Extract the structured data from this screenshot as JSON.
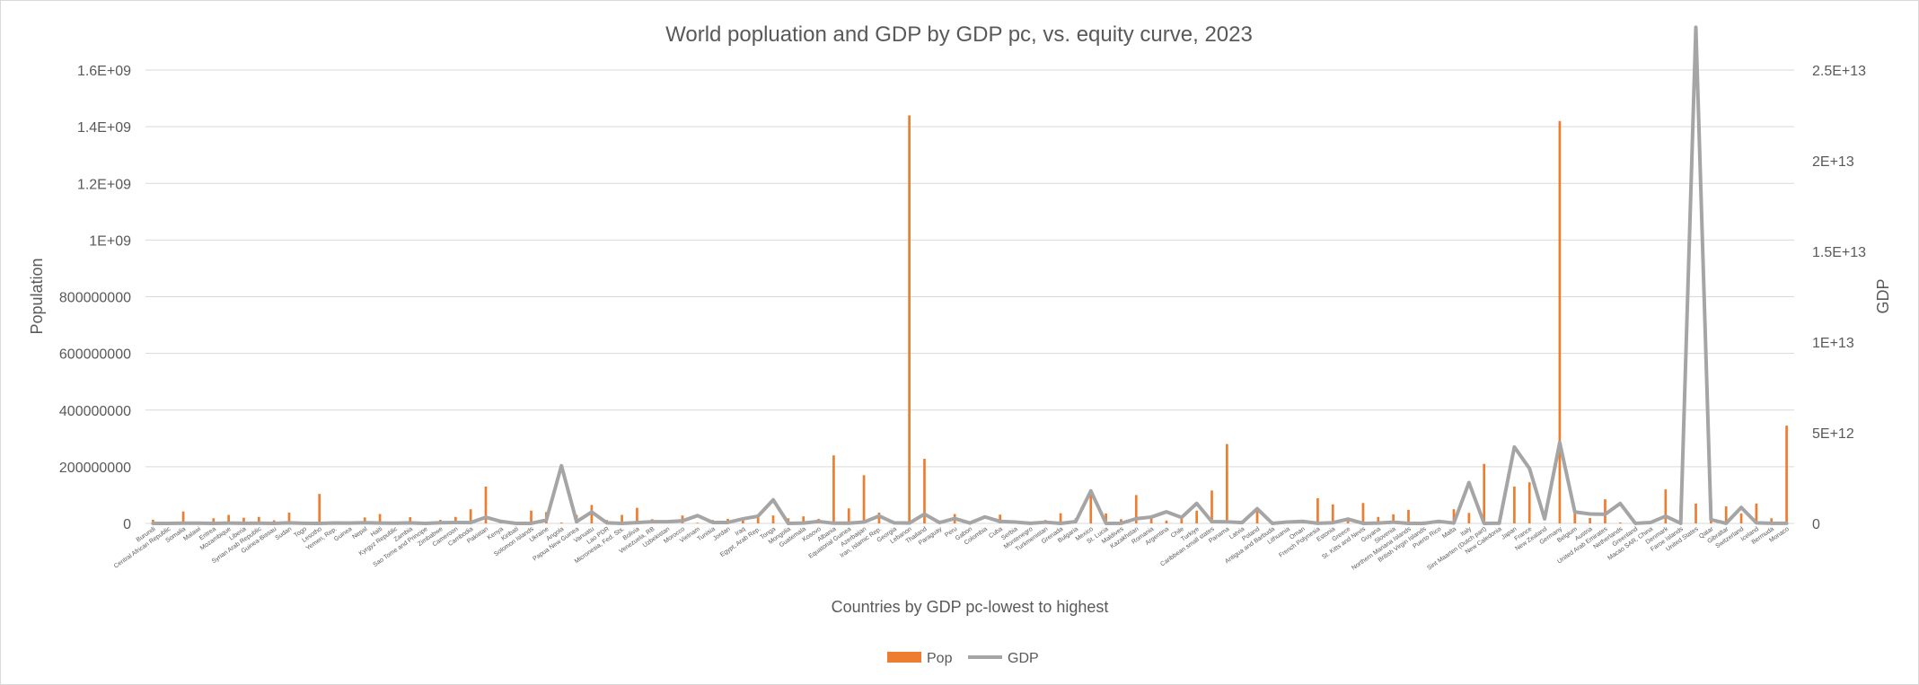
{
  "chart_data": {
    "type": "bar-line-combo",
    "title": "World popluation and GDP by GDP pc, vs. equity curve, 2023",
    "xlabel": "Countries by GDP pc-lowest to highest",
    "ylabel": "Population",
    "y2label": "GDP",
    "ylim": [
      0,
      1600000000
    ],
    "y2lim": [
      0,
      25000000000000
    ],
    "yticks": [
      "0",
      "200000000",
      "400000000",
      "600000000",
      "800000000",
      "1E+09",
      "1.2E+09",
      "1.4E+09",
      "1.6E+09"
    ],
    "y2ticks": [
      "0",
      "5E+12",
      "1E+13",
      "1.5E+13",
      "2E+13",
      "2.5E+13"
    ],
    "grid": true,
    "legend": "bottom",
    "colors": {
      "pop": "#ed7d31",
      "gdp": "#a5a5a5"
    },
    "series": [
      {
        "name": "Pop",
        "kind": "bar",
        "axis": "left"
      },
      {
        "name": "GDP",
        "kind": "line",
        "axis": "right"
      }
    ],
    "categories": [
      "Burundi",
      "Central African Republic",
      "Somalia",
      "Malawi",
      "Eritrea",
      "Mozambique",
      "Liberia",
      "Syrian Arab Republic",
      "Guinea-Bissau",
      "Sudan",
      "Togo",
      "Lesotho",
      "Yemen, Rep.",
      "Guinea",
      "Nepal",
      "Haiti",
      "Kyrgyz Republic",
      "Zambia",
      "Sao Tome and Principe",
      "Zimbabwe",
      "Cameroon",
      "Cambodia",
      "Pakistan",
      "Kenya",
      "Kiribati",
      "Solomon Islands",
      "Ukraine",
      "Angola",
      "Papua New Guinea",
      "Vanuatu",
      "Lao PDR",
      "Micronesia, Fed. Sts.",
      "Bolivia",
      "Venezuela, RB",
      "Uzbekistan",
      "Morocco",
      "Vietnam",
      "Tunisia",
      "Jordan",
      "Iraq",
      "Egypt, Arab Rep.",
      "Tonga",
      "Mongolia",
      "Guatemala",
      "Kosovo",
      "Albania",
      "Equatorial Guinea",
      "Azerbaijan",
      "Iran, Islamic Rep.",
      "Georgia",
      "Lebanon",
      "Thailand",
      "Paraguay",
      "Peru",
      "Gabon",
      "Colombia",
      "Cuba",
      "Serbia",
      "Montenegro",
      "Turkmenistan",
      "Grenada",
      "Bulgaria",
      "Mexico",
      "St. Lucia",
      "Maldives",
      "Kazakhstan",
      "Romania",
      "Argentina",
      "Chile",
      "Turkiye",
      "Caribbean small states",
      "Panama",
      "Latvia",
      "Poland",
      "Antigua and Barbuda",
      "Lithuania",
      "Oman",
      "French Polynesia",
      "Estonia",
      "Greece",
      "St. Kitts and Nevis",
      "Guyana",
      "Slovenia",
      "Northern Mariana Islands",
      "British Virgin Islands",
      "Puerto Rico",
      "Malta",
      "Italy",
      "Sint Maarten (Dutch part)",
      "New Caledonia",
      "Japan",
      "France",
      "New Zealand",
      "Germany",
      "Belgium",
      "Austria",
      "United Arab Emirates",
      "Netherlands",
      "Greenland",
      "Macao SAR, China",
      "Denmark",
      "Faroe Islands",
      "United States",
      "Qatar",
      "Gibraltar",
      "Switzerland",
      "Iceland",
      "Bermuda",
      "Monaco"
    ],
    "pop_values": [
      13000000.0,
      5000000.0,
      42000000.0,
      3000000.0,
      18000000.0,
      30000000.0,
      20000000.0,
      23000000.0,
      11000000.0,
      38000000.0,
      2500000.0,
      104000000.0,
      5000000.0,
      3500000.0,
      21000000.0,
      33000000.0,
      5300000.0,
      22000000.0,
      2000000.0,
      12500000.0,
      23000000.0,
      50000000.0,
      130000000.0,
      6000000.0,
      3000000.0,
      45000000.0,
      40000000.0,
      3000000.0,
      30000000.0,
      65000000.0,
      12000000.0,
      30000000.0,
      55000000.0,
      15000000.0,
      7000000.0,
      28000000.0,
      2300000.0,
      12000000.0,
      16000000.0,
      15000000.0,
      30000000.0,
      28000000.0,
      18000000.0,
      25000000.0,
      16000000.0,
      240000000.0,
      53000000.0,
      170000000.0,
      38000000.0,
      700000.0,
      1440000000.0,
      228000000.0,
      10000000.0,
      33000000.0,
      4200000.0,
      110000.0,
      31000000.0,
      7500000.0,
      250000.0,
      12000000.0,
      36000000.0,
      18000000.0,
      117000000.0,
      35000000.0,
      15000000.0,
      100000000.0,
      26000000.0,
      10000000.0,
      20000000.0,
      45000000.0,
      116000000.0,
      280000000.0,
      3400000.0,
      46000000.0,
      1800000.0,
      2500000.0,
      10000000.0,
      89000000.0,
      67000000.0,
      10000000.0,
      72000000.0,
      23000000.0,
      32000000.0,
      48000000.0,
      7000000.0,
      6000000.0,
      50000000.0,
      37000000.0,
      210000000.0,
      7000000.0,
      130000000.0,
      145000000.0,
      530000.0,
      1420000000.0,
      45000000.0,
      19000000.0,
      85000000.0,
      3200000.0,
      800000.0,
      5000000.0,
      120000000.0,
      65000000.0,
      70000000.0,
      83000000.0,
      60000000.0,
      35000000.0,
      70000000.0,
      18000000.0,
      345000000.0
    ],
    "gdp_values": [
      3000000000.0,
      2500000000.0,
      11000000000.0,
      13000000000.0,
      2000000000.0,
      20000000000.0,
      4000000000.0,
      10000000000.0,
      2000000000.0,
      30000000000.0,
      9000000000.0,
      2500000000.0,
      22000000000.0,
      20000000000.0,
      40000000000.0,
      20000000000.0,
      12000000000.0,
      28000000000.0,
      600000000.0,
      35000000000.0,
      48000000000.0,
      42000000000.0,
      340000000000.0,
      110000000000.0,
      300000000.0,
      1700000000.0,
      180000000000.0,
      3180000000000.0,
      96000000000.0,
      630000000000.0,
      32000000000.0,
      1100000000.0,
      45000000000.0,
      92000000000.0,
      90000000000.0,
      140000000000.0,
      430000000000.0,
      50000000000.0,
      51000000000.0,
      250000000000.0,
      400000000000.0,
      1300000000000.0,
      500000000.0,
      19000000000.0,
      105000000000.0,
      10000000000.0,
      12000000000.0,
      72000000000.0,
      410000000000.0,
      30000000000.0,
      17000000000.0,
      515000000000.0,
      43000000000.0,
      270000000000.0,
      20000000000.0,
      360000000000.0,
      110000000000.0,
      75000000000.0,
      7000000000.0,
      65000000000.0,
      1300000000.0,
      100000000000.0,
      1790000000000.0,
      2400000000.0,
      6600000000.0,
      260000000000.0,
      350000000000.0,
      640000000000.0,
      330000000000.0,
      1100000000000.0,
      100000000000.0,
      84000000000.0,
      43000000000.0,
      810000000000.0,
      2000000000.0,
      77000000000.0,
      110000000000.0,
      6000000000.0,
      40000000000.0,
      240000000000.0,
      1100000000.0,
      17000000000.0,
      68000000000.0,
      1400000000.0,
      1200000000.0,
      115000000000.0,
      20000000000.0,
      2250000000000.0,
      1600000000.0,
      10000000000.0,
      4210000000000.0,
      3030000000000.0,
      250000000000.0,
      4460000000000.0,
      630000000000.0,
      520000000000.0,
      500000000000.0,
      1100000000000.0,
      3000000000.0,
      47000000000.0,
      400000000000.0,
      3200000000.0,
      27360000000000.0,
      210000000000.0,
      3400000000.0,
      880000000000.0,
      30000000000.0,
      7500000000.0,
      8000000000.0
    ]
  },
  "legend_items": [
    {
      "label": "Pop",
      "color": "#ed7d31"
    },
    {
      "label": "GDP",
      "color": "#a5a5a5"
    }
  ]
}
